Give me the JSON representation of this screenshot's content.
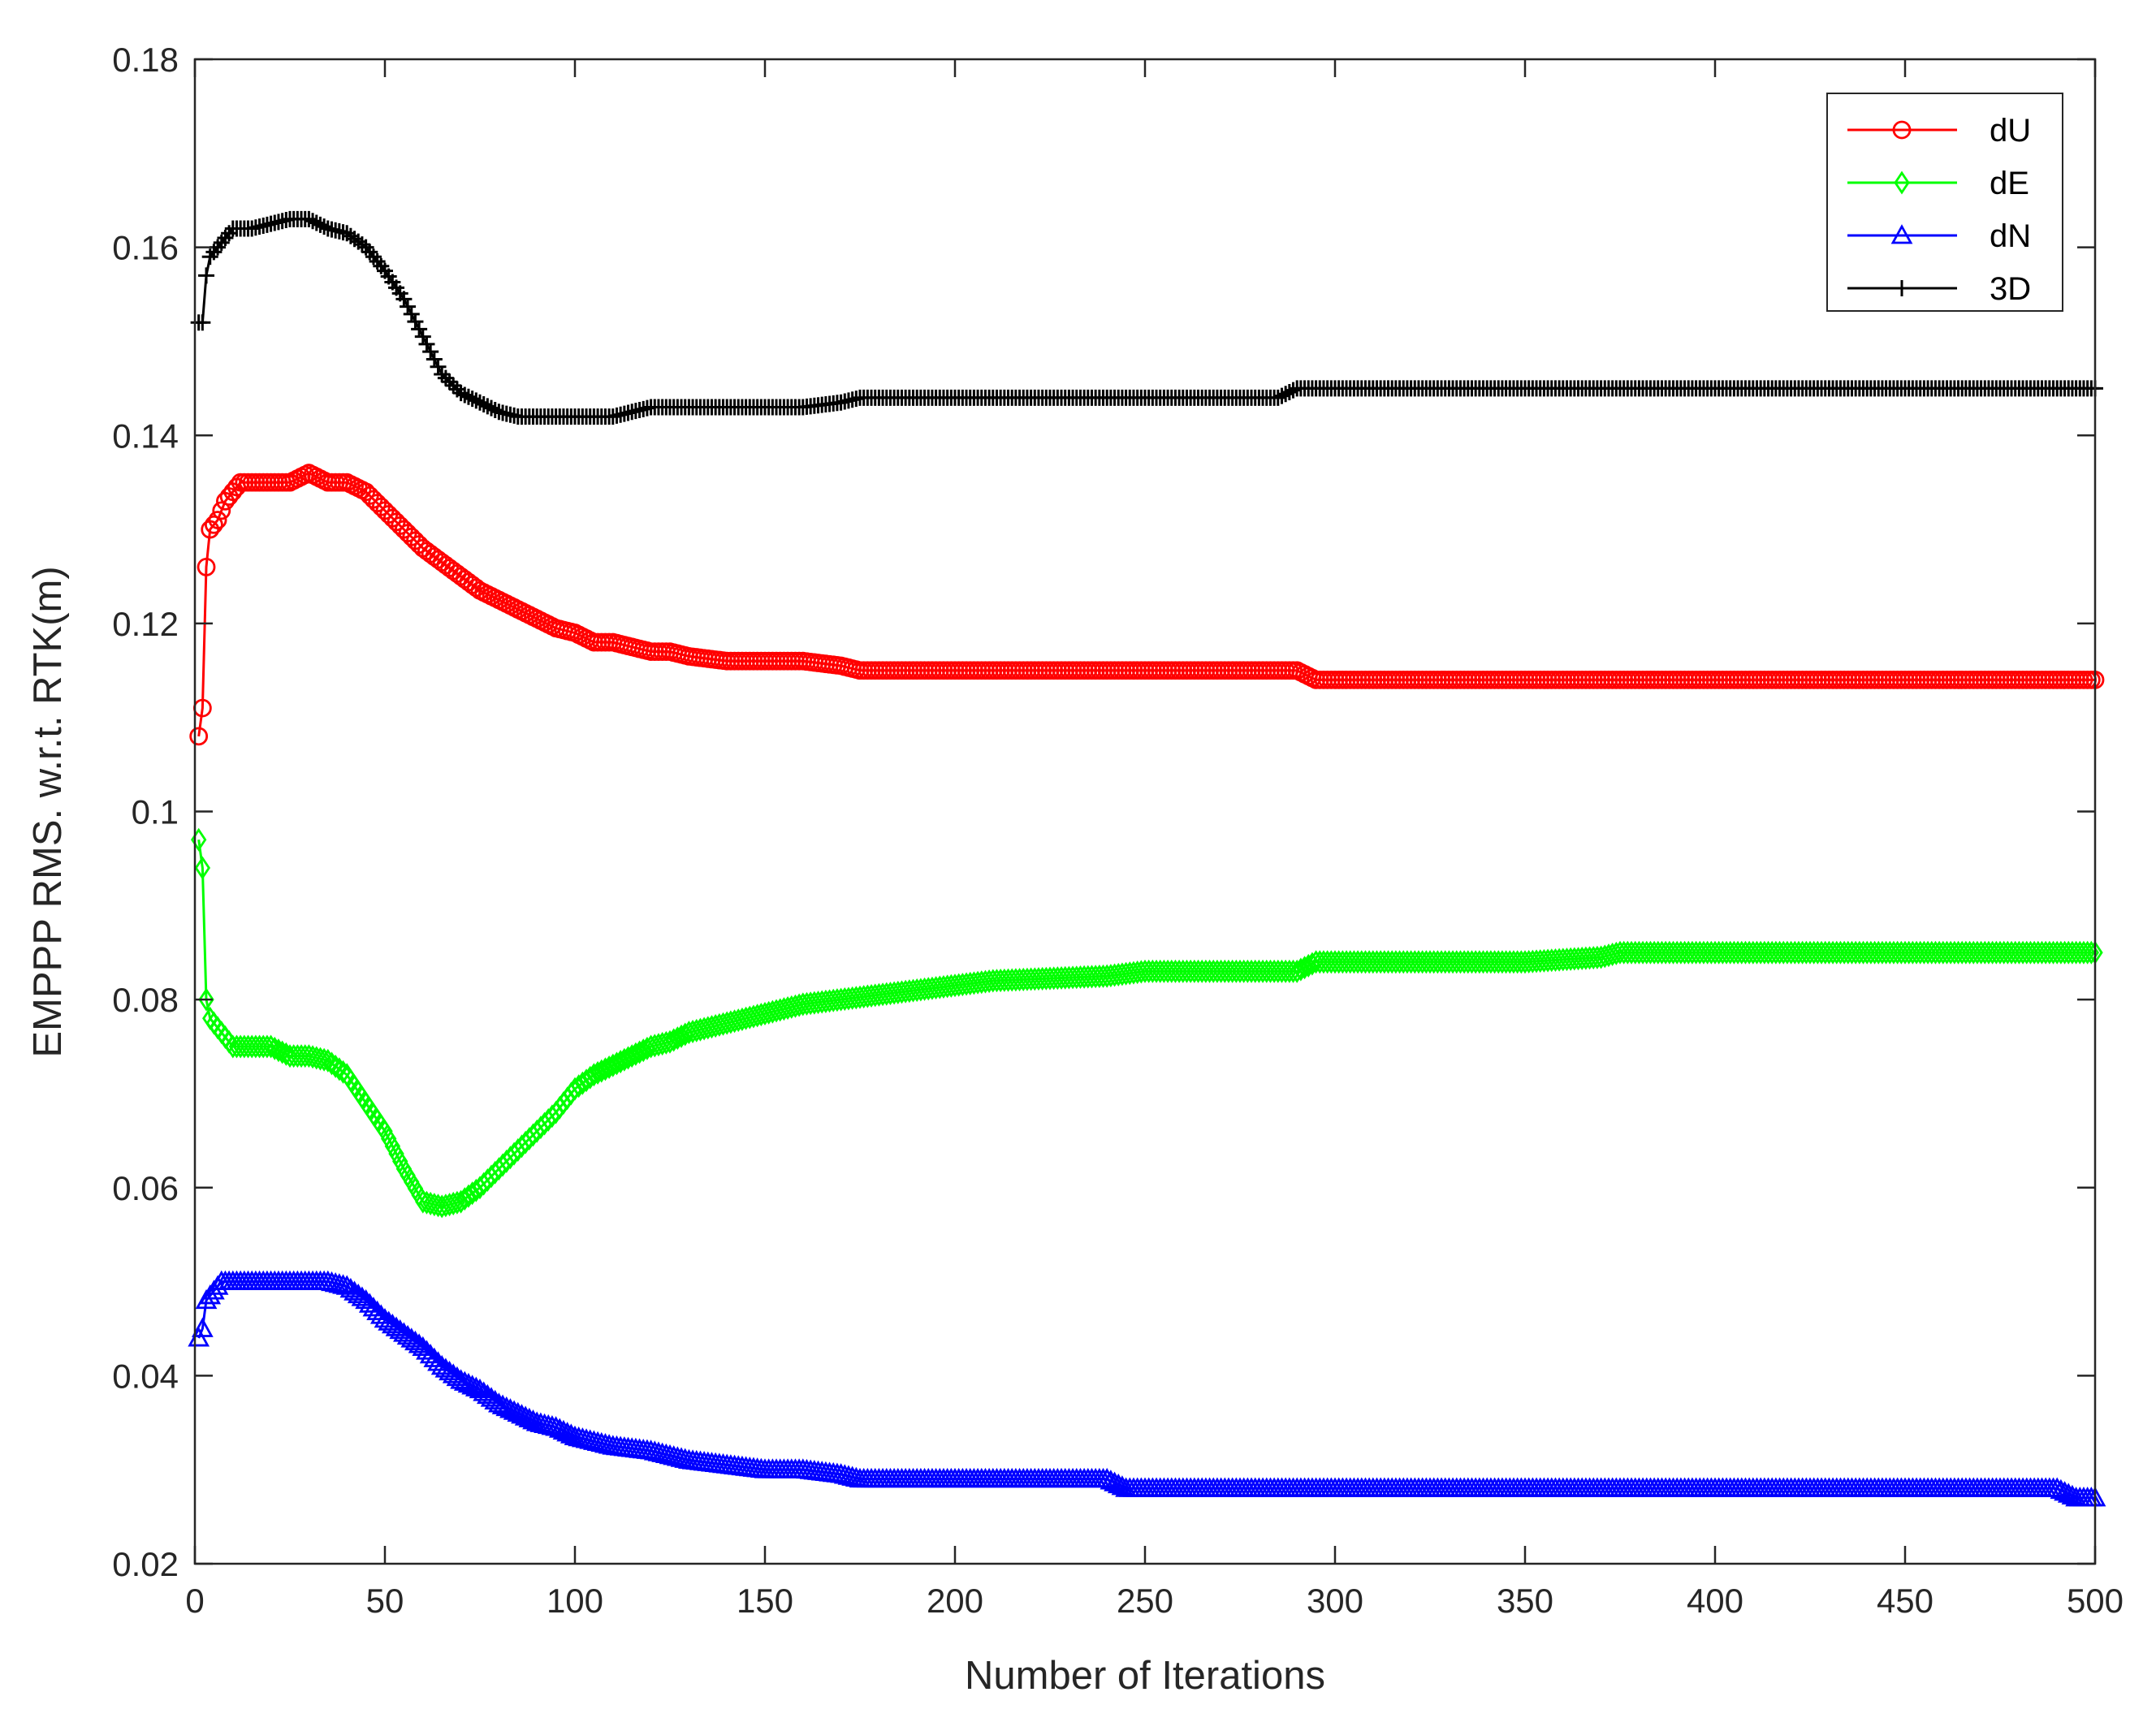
{
  "chart_data": {
    "type": "line",
    "xlabel": "Number of Iterations",
    "ylabel": "EMPPP RMS. w.r.t. RTK(m)",
    "xlim": [
      0,
      500
    ],
    "ylim": [
      0.02,
      0.18
    ],
    "xticks": [
      0,
      50,
      100,
      150,
      200,
      250,
      300,
      350,
      400,
      450,
      500
    ],
    "yticks": [
      0.02,
      0.04,
      0.06,
      0.08,
      0.1,
      0.12,
      0.14,
      0.16,
      0.18
    ],
    "xtick_labels": [
      "0",
      "50",
      "100",
      "150",
      "200",
      "250",
      "300",
      "350",
      "400",
      "450",
      "500"
    ],
    "ytick_labels": [
      "0.02",
      "0.04",
      "0.06",
      "0.08",
      "0.1",
      "0.12",
      "0.14",
      "0.16",
      "0.18"
    ],
    "grid": false,
    "legend_position": "top-right",
    "series": [
      {
        "name": "dU",
        "color": "#ff0000",
        "marker": "circle",
        "points": [
          [
            1,
            0.108
          ],
          [
            2,
            0.111
          ],
          [
            3,
            0.126
          ],
          [
            4,
            0.13
          ],
          [
            6,
            0.131
          ],
          [
            8,
            0.133
          ],
          [
            10,
            0.134
          ],
          [
            12,
            0.135
          ],
          [
            20,
            0.135
          ],
          [
            25,
            0.135
          ],
          [
            30,
            0.136
          ],
          [
            35,
            0.135
          ],
          [
            40,
            0.135
          ],
          [
            45,
            0.134
          ],
          [
            50,
            0.132
          ],
          [
            55,
            0.13
          ],
          [
            60,
            0.128
          ],
          [
            65,
            0.1265
          ],
          [
            70,
            0.125
          ],
          [
            75,
            0.1235
          ],
          [
            80,
            0.1225
          ],
          [
            85,
            0.1215
          ],
          [
            90,
            0.1205
          ],
          [
            95,
            0.1195
          ],
          [
            100,
            0.119
          ],
          [
            105,
            0.118
          ],
          [
            110,
            0.118
          ],
          [
            115,
            0.1175
          ],
          [
            120,
            0.117
          ],
          [
            125,
            0.117
          ],
          [
            130,
            0.1165
          ],
          [
            140,
            0.116
          ],
          [
            150,
            0.116
          ],
          [
            160,
            0.116
          ],
          [
            170,
            0.1155
          ],
          [
            175,
            0.115
          ],
          [
            200,
            0.115
          ],
          [
            250,
            0.115
          ],
          [
            290,
            0.115
          ],
          [
            295,
            0.114
          ],
          [
            350,
            0.114
          ],
          [
            400,
            0.114
          ],
          [
            450,
            0.114
          ],
          [
            500,
            0.114
          ]
        ]
      },
      {
        "name": "dE",
        "color": "#00ff00",
        "marker": "diamond",
        "points": [
          [
            1,
            0.097
          ],
          [
            2,
            0.094
          ],
          [
            3,
            0.08
          ],
          [
            4,
            0.078
          ],
          [
            6,
            0.077
          ],
          [
            8,
            0.076
          ],
          [
            10,
            0.075
          ],
          [
            20,
            0.075
          ],
          [
            25,
            0.074
          ],
          [
            30,
            0.074
          ],
          [
            35,
            0.0735
          ],
          [
            40,
            0.072
          ],
          [
            45,
            0.069
          ],
          [
            50,
            0.066
          ],
          [
            55,
            0.062
          ],
          [
            60,
            0.0585
          ],
          [
            65,
            0.058
          ],
          [
            70,
            0.0585
          ],
          [
            75,
            0.06
          ],
          [
            80,
            0.062
          ],
          [
            85,
            0.064
          ],
          [
            90,
            0.066
          ],
          [
            95,
            0.068
          ],
          [
            100,
            0.0705
          ],
          [
            105,
            0.072
          ],
          [
            110,
            0.073
          ],
          [
            115,
            0.074
          ],
          [
            120,
            0.075
          ],
          [
            125,
            0.0755
          ],
          [
            130,
            0.0765
          ],
          [
            140,
            0.0775
          ],
          [
            150,
            0.0785
          ],
          [
            160,
            0.0795
          ],
          [
            170,
            0.08
          ],
          [
            180,
            0.0805
          ],
          [
            190,
            0.081
          ],
          [
            200,
            0.0815
          ],
          [
            210,
            0.082
          ],
          [
            240,
            0.0825
          ],
          [
            250,
            0.083
          ],
          [
            290,
            0.083
          ],
          [
            295,
            0.084
          ],
          [
            350,
            0.084
          ],
          [
            370,
            0.0845
          ],
          [
            375,
            0.085
          ],
          [
            400,
            0.085
          ],
          [
            450,
            0.085
          ],
          [
            500,
            0.085
          ]
        ]
      },
      {
        "name": "dN",
        "color": "#0000ff",
        "marker": "triangle",
        "points": [
          [
            1,
            0.044
          ],
          [
            2,
            0.045
          ],
          [
            3,
            0.048
          ],
          [
            5,
            0.049
          ],
          [
            7,
            0.05
          ],
          [
            20,
            0.05
          ],
          [
            30,
            0.05
          ],
          [
            35,
            0.05
          ],
          [
            40,
            0.0495
          ],
          [
            45,
            0.048
          ],
          [
            50,
            0.046
          ],
          [
            55,
            0.0445
          ],
          [
            60,
            0.043
          ],
          [
            65,
            0.041
          ],
          [
            70,
            0.0395
          ],
          [
            75,
            0.0385
          ],
          [
            80,
            0.037
          ],
          [
            85,
            0.036
          ],
          [
            90,
            0.035
          ],
          [
            95,
            0.0345
          ],
          [
            100,
            0.0335
          ],
          [
            110,
            0.0325
          ],
          [
            120,
            0.032
          ],
          [
            130,
            0.031
          ],
          [
            140,
            0.0305
          ],
          [
            150,
            0.03
          ],
          [
            160,
            0.03
          ],
          [
            170,
            0.0295
          ],
          [
            175,
            0.029
          ],
          [
            200,
            0.029
          ],
          [
            240,
            0.029
          ],
          [
            245,
            0.028
          ],
          [
            300,
            0.028
          ],
          [
            350,
            0.028
          ],
          [
            400,
            0.028
          ],
          [
            450,
            0.028
          ],
          [
            490,
            0.028
          ],
          [
            495,
            0.027
          ],
          [
            500,
            0.027
          ]
        ]
      },
      {
        "name": "3D",
        "color": "#000000",
        "marker": "plus",
        "points": [
          [
            1,
            0.152
          ],
          [
            2,
            0.152
          ],
          [
            3,
            0.157
          ],
          [
            4,
            0.159
          ],
          [
            6,
            0.16
          ],
          [
            8,
            0.161
          ],
          [
            10,
            0.162
          ],
          [
            15,
            0.162
          ],
          [
            20,
            0.1625
          ],
          [
            25,
            0.163
          ],
          [
            30,
            0.163
          ],
          [
            35,
            0.162
          ],
          [
            40,
            0.1615
          ],
          [
            45,
            0.16
          ],
          [
            50,
            0.1575
          ],
          [
            55,
            0.1545
          ],
          [
            60,
            0.1505
          ],
          [
            65,
            0.1465
          ],
          [
            70,
            0.1445
          ],
          [
            75,
            0.1435
          ],
          [
            80,
            0.1425
          ],
          [
            85,
            0.142
          ],
          [
            100,
            0.142
          ],
          [
            110,
            0.142
          ],
          [
            120,
            0.143
          ],
          [
            140,
            0.143
          ],
          [
            160,
            0.143
          ],
          [
            170,
            0.1435
          ],
          [
            175,
            0.144
          ],
          [
            200,
            0.144
          ],
          [
            250,
            0.144
          ],
          [
            285,
            0.144
          ],
          [
            290,
            0.145
          ],
          [
            300,
            0.145
          ],
          [
            350,
            0.145
          ],
          [
            400,
            0.145
          ],
          [
            450,
            0.145
          ],
          [
            500,
            0.145
          ]
        ]
      }
    ]
  }
}
